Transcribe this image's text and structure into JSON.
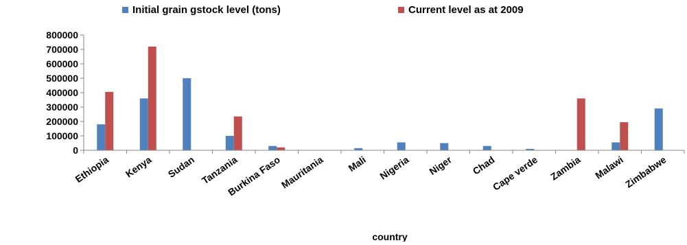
{
  "chart_data": {
    "type": "bar",
    "title": "",
    "xlabel": "country",
    "ylabel": "",
    "ylim": [
      0,
      800000
    ],
    "yticks": [
      0,
      100000,
      200000,
      300000,
      400000,
      500000,
      600000,
      700000,
      800000
    ],
    "ytick_labels": [
      "0",
      "100000",
      "200000",
      "300000",
      "400000",
      "500000",
      "600000",
      "700000",
      "800000"
    ],
    "grid": false,
    "legend_position": "top",
    "categories": [
      "Ethiopia",
      "Kenya",
      "Sudan",
      "Tanzania",
      "Burkina Faso",
      "Mauritania",
      "Mali",
      "Nigeria",
      "Niger",
      "Chad",
      "Cape verde",
      "Zambia",
      "Malawi",
      "Zimbabwe"
    ],
    "series": [
      {
        "name": "Initial grain  gstock level  (tons)",
        "color": "#4F81BD",
        "values": [
          180000,
          360000,
          500000,
          100000,
          30000,
          2000,
          15000,
          55000,
          50000,
          30000,
          10000,
          0,
          55000,
          290000
        ]
      },
      {
        "name": "Current level as at 2009",
        "color": "#C0504D",
        "values": [
          405000,
          720000,
          0,
          235000,
          20000,
          0,
          0,
          0,
          0,
          0,
          0,
          360000,
          195000,
          0
        ]
      }
    ]
  }
}
